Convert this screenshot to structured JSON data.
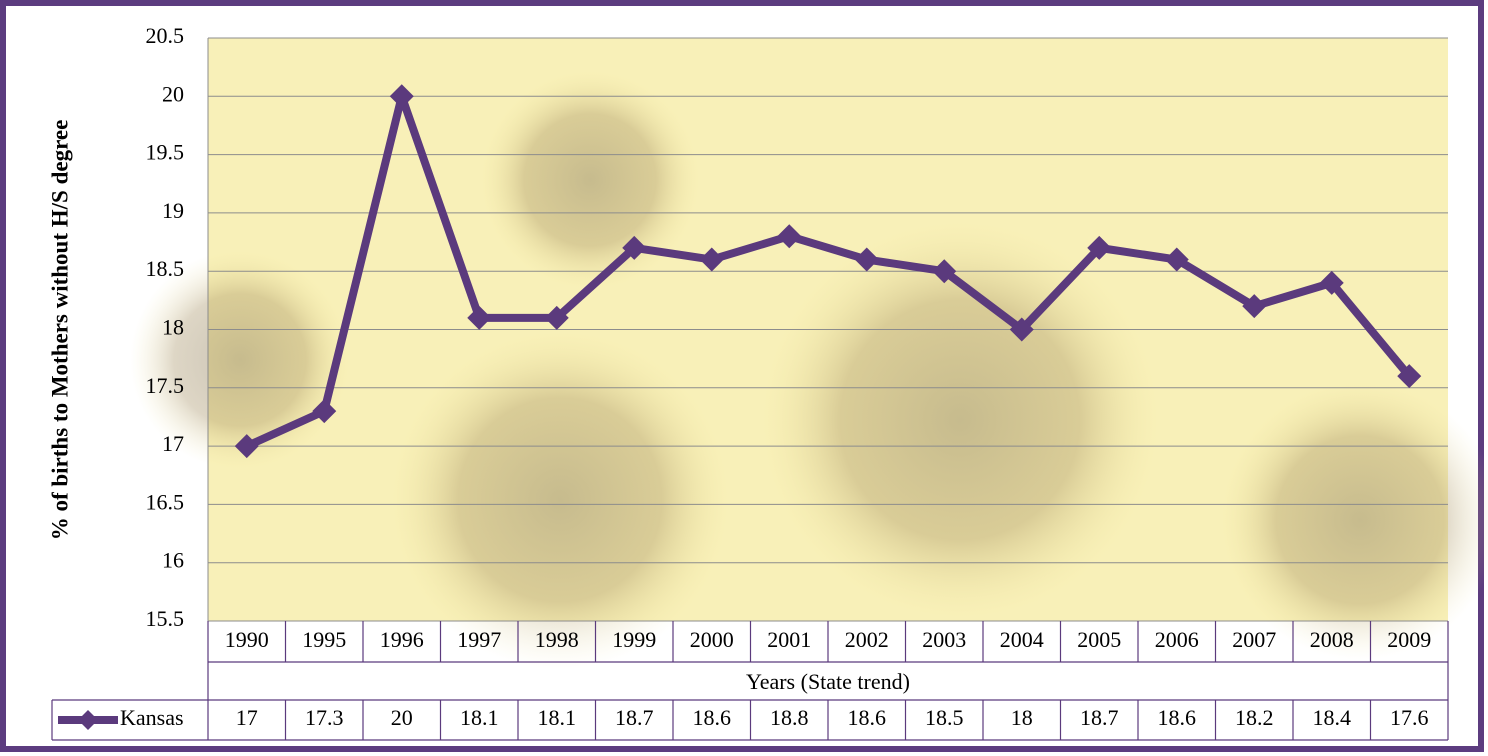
{
  "chart_data": {
    "type": "line",
    "x_label": "Years (State trend)",
    "y_label": "% of births to Mothers without H/S degree",
    "categories": [
      "1990",
      "1995",
      "1996",
      "1997",
      "1998",
      "1999",
      "2000",
      "2001",
      "2002",
      "2003",
      "2004",
      "2005",
      "2006",
      "2007",
      "2008",
      "2009"
    ],
    "series": [
      {
        "name": "Kansas",
        "color": "#5b3a7d",
        "values": [
          17,
          17.3,
          20,
          18.1,
          18.1,
          18.7,
          18.6,
          18.8,
          18.6,
          18.5,
          18,
          18.7,
          18.6,
          18.2,
          18.4,
          17.6
        ]
      }
    ],
    "ylim": [
      15.5,
      20.5
    ],
    "yticks": [
      15.5,
      16,
      16.5,
      17,
      17.5,
      18,
      18.5,
      19,
      19.5,
      20,
      20.5
    ],
    "grid": true,
    "data_table": true
  }
}
